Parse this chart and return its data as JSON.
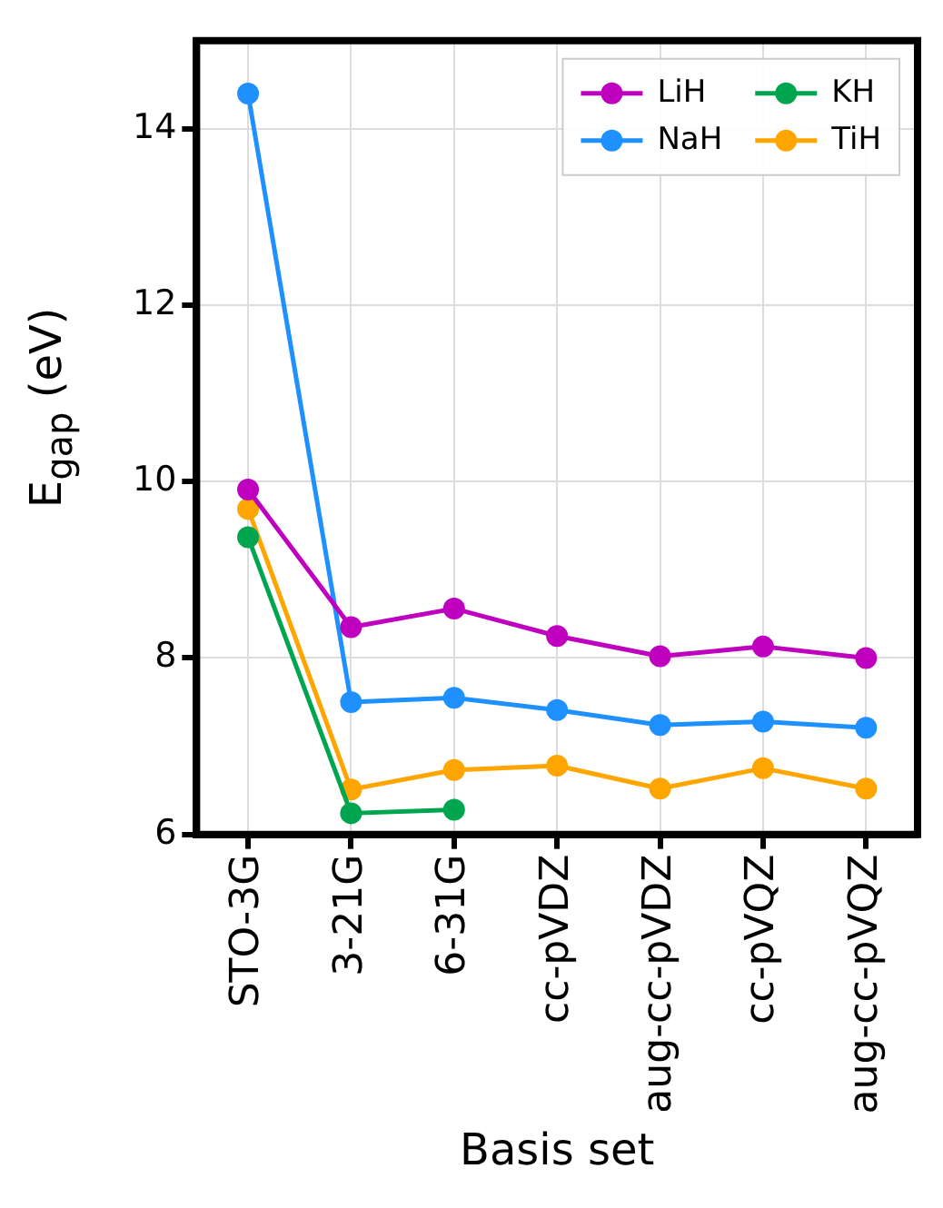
{
  "chart_data": {
    "type": "line",
    "xlabel": "Basis set",
    "ylabel": "E$_{gap}$ (eV)",
    "categories": [
      "STO-3G",
      "3-21G",
      "6-31G",
      "cc-pVDZ",
      "aug-cc-pVDZ",
      "cc-pVQZ",
      "aug-cc-pVQZ"
    ],
    "series": [
      {
        "name": "LiH",
        "color": "#bf00bf",
        "values": [
          9.91,
          8.35,
          8.56,
          8.25,
          8.02,
          8.13,
          8.0
        ]
      },
      {
        "name": "NaH",
        "color": "#1e90ff",
        "values": [
          14.4,
          7.5,
          7.55,
          7.41,
          7.24,
          7.28,
          7.21
        ]
      },
      {
        "name": "KH",
        "color": "#00a550",
        "values": [
          9.37,
          6.24,
          6.28,
          null,
          null,
          null,
          null
        ]
      },
      {
        "name": "TiH",
        "color": "#ffa500",
        "values": [
          9.69,
          6.51,
          6.73,
          6.78,
          6.52,
          6.75,
          6.52
        ]
      }
    ],
    "ylim": [
      6,
      15
    ],
    "yticks": [
      6,
      8,
      10,
      12,
      14
    ],
    "grid": true,
    "legend": "top right",
    "marker": "circle",
    "line_style": "solid"
  }
}
